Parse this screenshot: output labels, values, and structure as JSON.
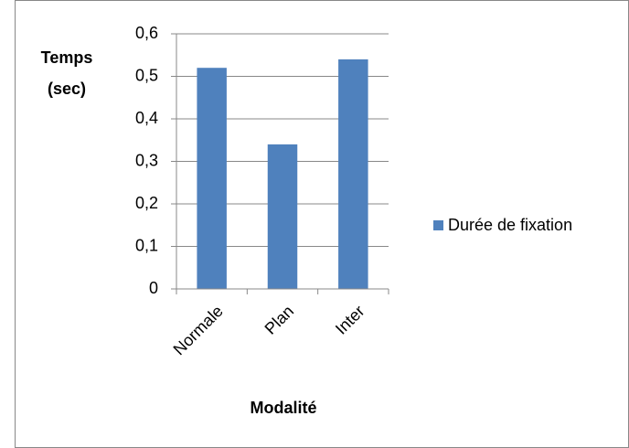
{
  "chart_data": {
    "type": "bar",
    "y_axis_label": "Temps (sec)",
    "x_axis_label": "Modalité",
    "categories": [
      "Normale",
      "Plan",
      "Inter"
    ],
    "series": [
      {
        "name": "Durée de fixation",
        "color": "#4f81bd",
        "values": [
          0.52,
          0.34,
          0.54
        ]
      }
    ],
    "ylim": [
      0,
      0.6
    ],
    "yticks": [
      0,
      {
        "value": 0.1,
        "label": "0,1"
      },
      {
        "value": 0.2,
        "label": "0,2"
      },
      {
        "value": 0.3,
        "label": "0,3"
      },
      {
        "value": 0.4,
        "label": "0,4"
      },
      {
        "value": 0.5,
        "label": "0,5"
      },
      {
        "value": 0.6,
        "label": "0,6"
      }
    ],
    "grid": true,
    "legend": "right"
  }
}
